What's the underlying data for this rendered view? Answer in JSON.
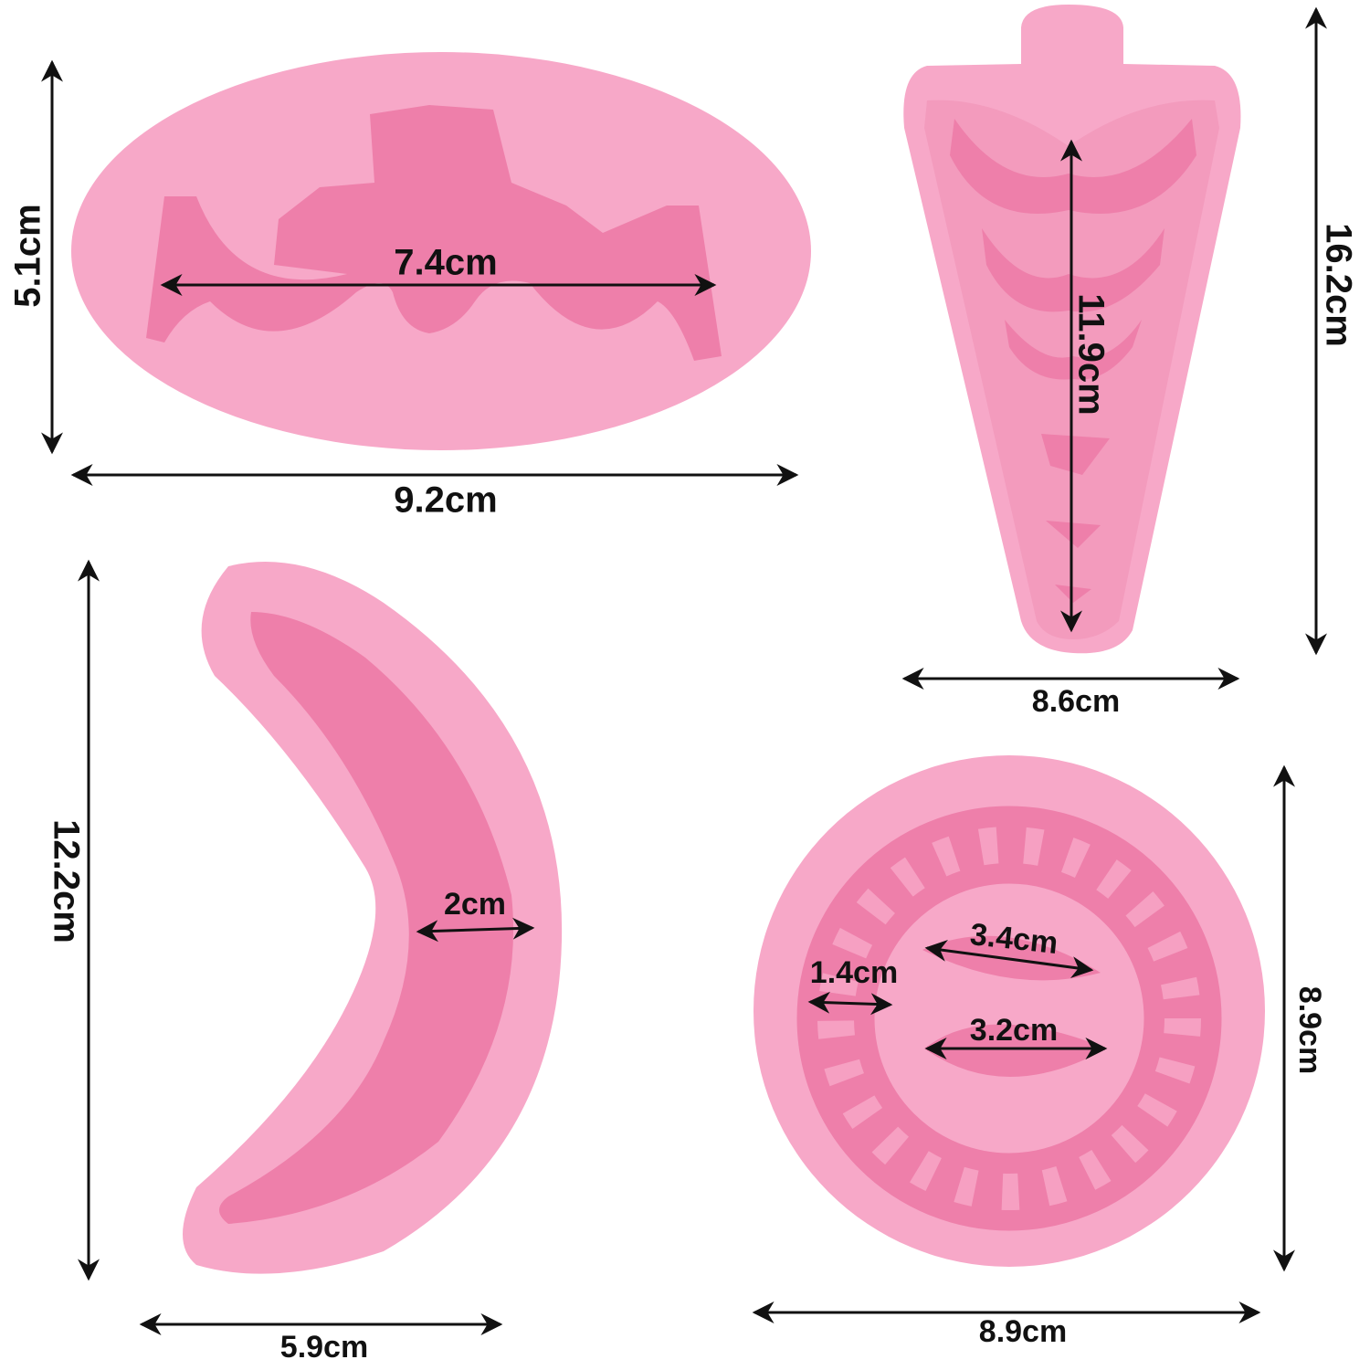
{
  "molds": [
    {
      "width": "9.2cm",
      "height": "5.1cm",
      "inner": [
        "7.4cm"
      ]
    },
    {
      "width": "8.6cm",
      "height": "16.2cm",
      "inner": [
        "11.9cm"
      ]
    },
    {
      "width": "5.9cm",
      "height": "12.2cm",
      "inner": [
        "2cm"
      ]
    },
    {
      "width": "8.9cm",
      "height": "8.9cm",
      "inner": [
        "3.4cm",
        "3.2cm",
        "1.4cm"
      ]
    }
  ]
}
